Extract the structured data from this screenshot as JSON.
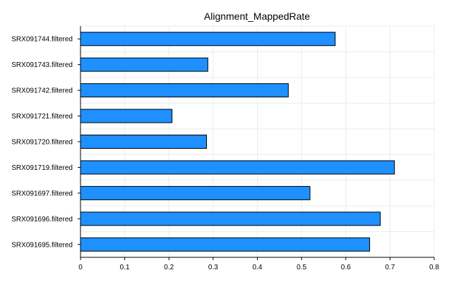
{
  "chart_data": {
    "type": "bar",
    "orientation": "horizontal",
    "title": "Alignment_MappedRate",
    "xlabel": "",
    "ylabel": "",
    "categories": [
      "SRX091744.filtered",
      "SRX091743.filtered",
      "SRX091742.filtered",
      "SRX091721.filtered",
      "SRX091720.filtered",
      "SRX091719.filtered",
      "SRX091697.filtered",
      "SRX091696.filtered",
      "SRX091695.filtered"
    ],
    "values": [
      0.576,
      0.288,
      0.47,
      0.207,
      0.285,
      0.71,
      0.519,
      0.678,
      0.654
    ],
    "xlim": [
      0,
      0.8
    ],
    "xticks": [
      "0",
      "0.1",
      "0.2",
      "0.3",
      "0.4",
      "0.5",
      "0.6",
      "0.7",
      "0.8"
    ],
    "grid": true,
    "legend": "none",
    "colors": {
      "bar": "#1E90FF",
      "bar_edge": "#000000",
      "grid": "#ececec",
      "axis": "#000000"
    }
  }
}
